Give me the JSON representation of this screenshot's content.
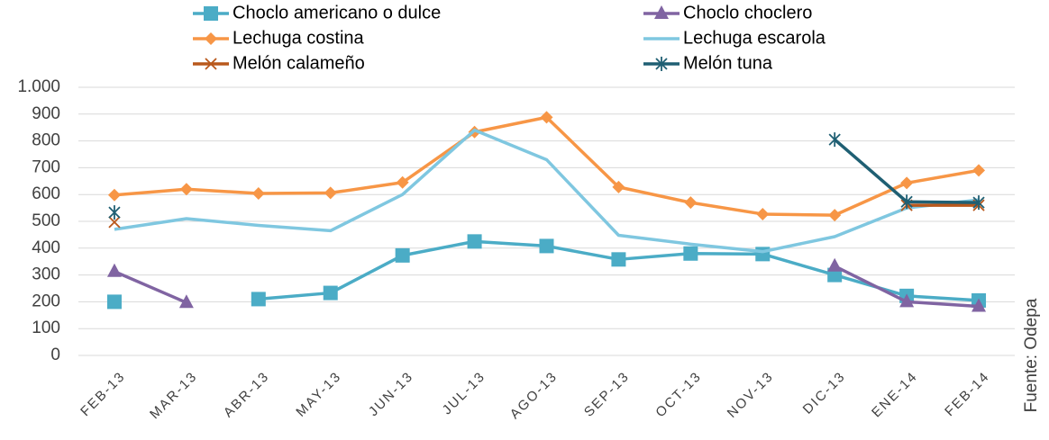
{
  "chart_data": {
    "type": "line",
    "categories": [
      "FEB-13",
      "MAR-13",
      "ABR-13",
      "MAY-13",
      "JUN-13",
      "JUL-13",
      "AGO-13",
      "SEP-13",
      "OCT-13",
      "NOV-13",
      "DIC-13",
      "ENE-14",
      "FEB-14"
    ],
    "series": [
      {
        "name": "Choclo americano o dulce",
        "color": "#4bacc6",
        "marker": "square",
        "values": [
          200,
          null,
          210,
          233,
          373,
          425,
          408,
          358,
          380,
          378,
          300,
          222,
          205
        ]
      },
      {
        "name": "Choclo choclero",
        "color": "#8064a2",
        "marker": "triangle",
        "values": [
          313,
          197,
          null,
          null,
          null,
          null,
          null,
          null,
          null,
          null,
          333,
          200,
          183
        ]
      },
      {
        "name": "Lechuga costina",
        "color": "#f79646",
        "marker": "diamond",
        "values": [
          598,
          620,
          604,
          606,
          645,
          833,
          888,
          628,
          570,
          527,
          523,
          643,
          690
        ]
      },
      {
        "name": "Lechuga escarola",
        "color": "#7fc7e0",
        "marker": "none",
        "values": [
          470,
          510,
          485,
          465,
          600,
          840,
          730,
          448,
          415,
          387,
          443,
          550,
          580
        ]
      },
      {
        "name": "Melón calameño",
        "color": "#b9581c",
        "marker": "x",
        "values": [
          497,
          null,
          null,
          null,
          null,
          null,
          null,
          null,
          null,
          null,
          null,
          560,
          560
        ]
      },
      {
        "name": "Melón tuna",
        "color": "#1f5f73",
        "marker": "star",
        "values": [
          533,
          null,
          null,
          null,
          null,
          null,
          null,
          null,
          null,
          null,
          805,
          573,
          570
        ]
      }
    ],
    "ylim": [
      0,
      1000
    ],
    "yticks": [
      0,
      100,
      200,
      300,
      400,
      500,
      600,
      700,
      800,
      900,
      {
        "value": 1000,
        "label": "1.000"
      }
    ],
    "grid": true,
    "legend": "top",
    "source": "Fuente: Odepa"
  }
}
